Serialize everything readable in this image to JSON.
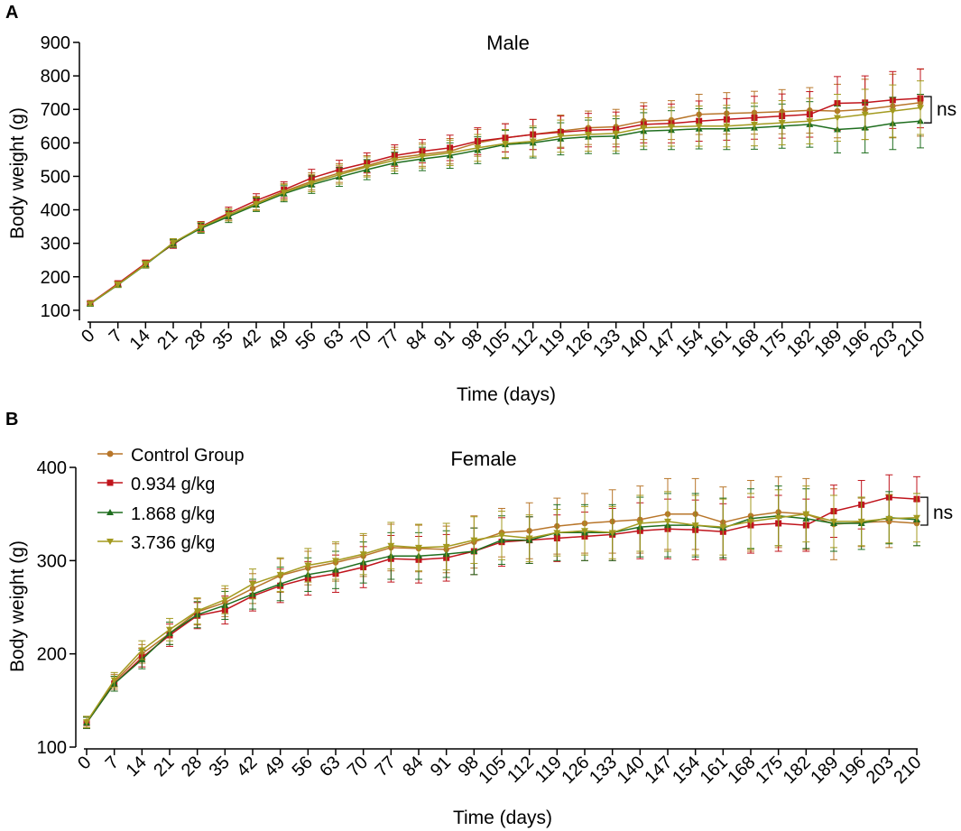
{
  "colors": {
    "control": "#b8762a",
    "dose1": "#c0141c",
    "dose2": "#1f6e1f",
    "dose3": "#a39a1f",
    "axis": "#000000"
  },
  "chart_data": [
    {
      "type": "line",
      "panel_label": "A",
      "title": "Male",
      "xlabel": "Time (days)",
      "ylabel": "Body weight (g)",
      "ylim": [
        70,
        900
      ],
      "yticks": [
        100,
        200,
        300,
        400,
        500,
        600,
        700,
        800,
        900
      ],
      "annotation": "ns",
      "x": [
        0,
        7,
        14,
        21,
        28,
        35,
        42,
        49,
        56,
        63,
        70,
        77,
        84,
        91,
        98,
        105,
        112,
        119,
        126,
        133,
        140,
        147,
        154,
        161,
        168,
        175,
        182,
        189,
        196,
        203,
        210
      ],
      "series": [
        {
          "name": "Control Group",
          "key": "control",
          "marker": "circle",
          "values": [
            120,
            178,
            238,
            300,
            348,
            385,
            420,
            455,
            485,
            510,
            532,
            555,
            565,
            575,
            600,
            615,
            625,
            635,
            645,
            648,
            665,
            668,
            685,
            688,
            690,
            693,
            697,
            695,
            700,
            710,
            720
          ],
          "errors": [
            6,
            8,
            10,
            12,
            15,
            18,
            20,
            24,
            26,
            28,
            30,
            32,
            35,
            38,
            40,
            42,
            45,
            48,
            50,
            52,
            55,
            58,
            60,
            62,
            64,
            66,
            68,
            80,
            90,
            95,
            100
          ]
        },
        {
          "name": "0.934 g/kg",
          "key": "dose1",
          "marker": "square",
          "values": [
            121,
            180,
            240,
            297,
            350,
            390,
            428,
            460,
            495,
            520,
            540,
            562,
            575,
            585,
            605,
            615,
            625,
            632,
            638,
            640,
            655,
            658,
            665,
            670,
            675,
            680,
            685,
            718,
            720,
            728,
            733
          ],
          "errors": [
            6,
            8,
            10,
            12,
            15,
            18,
            20,
            24,
            26,
            28,
            30,
            32,
            35,
            38,
            40,
            42,
            45,
            48,
            50,
            52,
            55,
            58,
            60,
            62,
            64,
            66,
            68,
            80,
            80,
            85,
            88
          ]
        },
        {
          "name": "1.868 g/kg",
          "key": "dose2",
          "marker": "triangle-up",
          "values": [
            119,
            176,
            236,
            300,
            345,
            380,
            415,
            448,
            475,
            498,
            520,
            540,
            552,
            562,
            578,
            595,
            600,
            612,
            618,
            620,
            635,
            638,
            642,
            642,
            645,
            650,
            655,
            640,
            645,
            658,
            665
          ],
          "errors": [
            6,
            8,
            10,
            12,
            15,
            18,
            20,
            24,
            26,
            28,
            30,
            32,
            35,
            38,
            40,
            42,
            45,
            48,
            50,
            52,
            55,
            58,
            60,
            62,
            64,
            66,
            68,
            70,
            75,
            78,
            80
          ]
        },
        {
          "name": "3.736 g/kg",
          "key": "dose3",
          "marker": "triangle-down",
          "values": [
            120,
            177,
            237,
            302,
            348,
            385,
            418,
            452,
            480,
            505,
            528,
            548,
            560,
            570,
            585,
            598,
            605,
            620,
            625,
            628,
            645,
            648,
            650,
            650,
            655,
            660,
            665,
            675,
            685,
            695,
            705
          ],
          "errors": [
            6,
            8,
            10,
            12,
            15,
            18,
            20,
            24,
            26,
            28,
            30,
            32,
            35,
            38,
            40,
            42,
            45,
            48,
            50,
            52,
            55,
            58,
            60,
            62,
            64,
            66,
            68,
            70,
            75,
            78,
            80
          ]
        }
      ]
    },
    {
      "type": "line",
      "panel_label": "B",
      "title": "Female",
      "xlabel": "Time (days)",
      "ylabel": "Body weight (g)",
      "ylim": [
        100,
        400
      ],
      "yticks": [
        100,
        200,
        300,
        400
      ],
      "annotation": "ns",
      "x": [
        0,
        7,
        14,
        21,
        28,
        35,
        42,
        49,
        56,
        63,
        70,
        77,
        84,
        91,
        98,
        105,
        112,
        119,
        126,
        133,
        140,
        147,
        154,
        161,
        168,
        175,
        182,
        189,
        196,
        203,
        210
      ],
      "series": [
        {
          "name": "Control Group",
          "key": "control",
          "marker": "circle",
          "values": [
            127,
            170,
            200,
            222,
            245,
            255,
            270,
            284,
            292,
            298,
            305,
            314,
            313,
            312,
            320,
            330,
            332,
            337,
            340,
            342,
            344,
            350,
            350,
            341,
            348,
            352,
            350,
            339,
            341,
            342,
            340
          ],
          "errors": [
            6,
            8,
            10,
            12,
            14,
            15,
            16,
            18,
            18,
            20,
            22,
            25,
            25,
            25,
            28,
            26,
            30,
            30,
            32,
            34,
            36,
            38,
            38,
            38,
            38,
            38,
            38,
            38,
            26,
            28,
            24
          ]
        },
        {
          "name": "0.934 g/kg",
          "key": "dose1",
          "marker": "square",
          "values": [
            126,
            168,
            196,
            220,
            241,
            247,
            262,
            273,
            281,
            286,
            293,
            302,
            301,
            303,
            310,
            320,
            322,
            324,
            326,
            328,
            332,
            334,
            333,
            331,
            338,
            340,
            338,
            353,
            360,
            368,
            366
          ],
          "errors": [
            6,
            8,
            10,
            12,
            14,
            15,
            16,
            18,
            18,
            20,
            22,
            25,
            25,
            25,
            25,
            26,
            25,
            25,
            26,
            28,
            30,
            32,
            32,
            30,
            30,
            30,
            28,
            28,
            26,
            24,
            24
          ]
        },
        {
          "name": "1.868 g/kg",
          "key": "dose2",
          "marker": "triangle-up",
          "values": [
            126,
            168,
            194,
            222,
            242,
            252,
            264,
            275,
            285,
            290,
            298,
            305,
            305,
            307,
            310,
            322,
            322,
            330,
            330,
            330,
            336,
            338,
            338,
            335,
            345,
            348,
            345,
            340,
            340,
            346,
            344
          ],
          "errors": [
            6,
            8,
            10,
            12,
            14,
            15,
            16,
            18,
            18,
            20,
            22,
            25,
            25,
            25,
            25,
            26,
            25,
            30,
            30,
            30,
            32,
            34,
            34,
            32,
            32,
            32,
            32,
            30,
            28,
            28,
            28
          ]
        },
        {
          "name": "3.736 g/kg",
          "key": "dose3",
          "marker": "triangle-down",
          "values": [
            127,
            172,
            204,
            226,
            246,
            258,
            275,
            285,
            295,
            300,
            307,
            316,
            314,
            315,
            322,
            327,
            324,
            330,
            332,
            330,
            340,
            342,
            338,
            336,
            342,
            346,
            350,
            342,
            342,
            345,
            346
          ],
          "errors": [
            6,
            8,
            10,
            12,
            14,
            15,
            16,
            18,
            18,
            20,
            22,
            25,
            25,
            25,
            25,
            26,
            25,
            25,
            26,
            28,
            30,
            32,
            32,
            30,
            30,
            30,
            30,
            28,
            26,
            26,
            26
          ]
        }
      ]
    }
  ]
}
